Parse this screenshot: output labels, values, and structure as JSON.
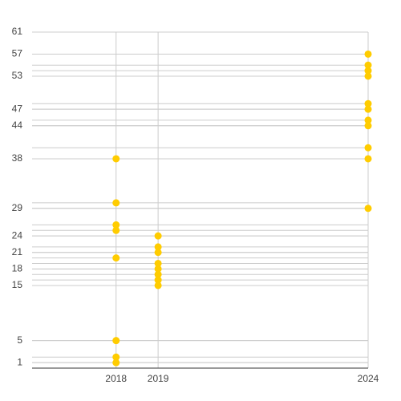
{
  "chart_data": {
    "type": "scatter",
    "series": [
      {
        "color": "#ffcc00",
        "x": [
          2018,
          2018,
          2018,
          2018,
          2018,
          2018,
          2018,
          2018,
          2019,
          2019,
          2019,
          2019,
          2019,
          2019,
          2019,
          2019,
          2024,
          2024,
          2024,
          2024,
          2024,
          2024,
          2024,
          2024,
          2024,
          2024,
          2024
        ],
        "y": [
          38,
          30,
          26,
          25,
          20,
          5,
          2,
          1,
          24,
          22,
          21,
          19,
          18,
          17,
          16,
          15,
          57,
          55,
          54,
          53,
          48,
          47,
          45,
          44,
          40,
          38,
          29
        ]
      }
    ],
    "xlim": [
      2016,
      2024
    ],
    "xticks": [
      2018,
      2019,
      2024
    ],
    "ylim": [
      0,
      61
    ],
    "yticks": [
      1,
      5,
      15,
      18,
      21,
      24,
      29,
      38,
      44,
      47,
      53,
      57,
      61
    ],
    "grid": true
  }
}
